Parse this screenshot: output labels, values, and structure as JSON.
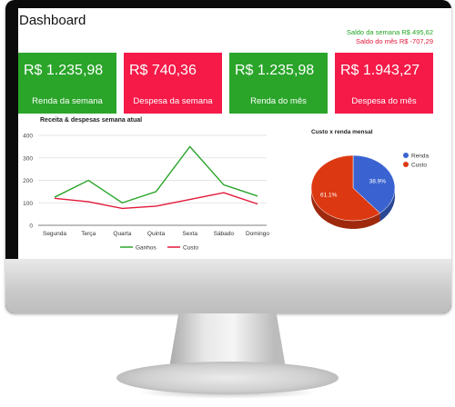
{
  "dashboard": {
    "title": "Dashboard",
    "saldo_semana": "Saldo da semana R$ 495,62",
    "saldo_mes": "Saldo do mês R$ -707,29",
    "cards": [
      {
        "value": "R$ 1.235,98",
        "label": "Renda da semana",
        "color": "#2aa52a"
      },
      {
        "value": "R$ 740,36",
        "label": "Despesa da semana",
        "color": "#f51a48"
      },
      {
        "value": "R$ 1.235,98",
        "label": "Renda do mês",
        "color": "#2aa52a"
      },
      {
        "value": "R$ 1.943,27",
        "label": "Despesa do mês",
        "color": "#f51a48"
      }
    ]
  },
  "chart_data": [
    {
      "type": "line",
      "title": "Receita & despesas semana atual",
      "categories": [
        "Segunda",
        "Terça",
        "Quarta",
        "Quinta",
        "Sexta",
        "Sábado",
        "Domingo"
      ],
      "series": [
        {
          "name": "Ganhos",
          "color": "#2aa52a",
          "values": [
            125,
            200,
            100,
            150,
            350,
            180,
            130
          ]
        },
        {
          "name": "Custo",
          "color": "#e4183a",
          "values": [
            120,
            105,
            75,
            85,
            115,
            145,
            95
          ]
        }
      ],
      "yticks": [
        0,
        100,
        200,
        300,
        400
      ],
      "ylim": [
        0,
        400
      ],
      "grid": true,
      "legend": "bottom"
    },
    {
      "type": "pie",
      "title": "Custo x renda mensal",
      "slices": [
        {
          "name": "Renda",
          "value": 38.9,
          "label": "38.9%",
          "color": "#3a63d1"
        },
        {
          "name": "Custo",
          "value": 61.1,
          "label": "61.1%",
          "color": "#dc3912"
        }
      ],
      "legend": "right",
      "style": "3d"
    }
  ]
}
